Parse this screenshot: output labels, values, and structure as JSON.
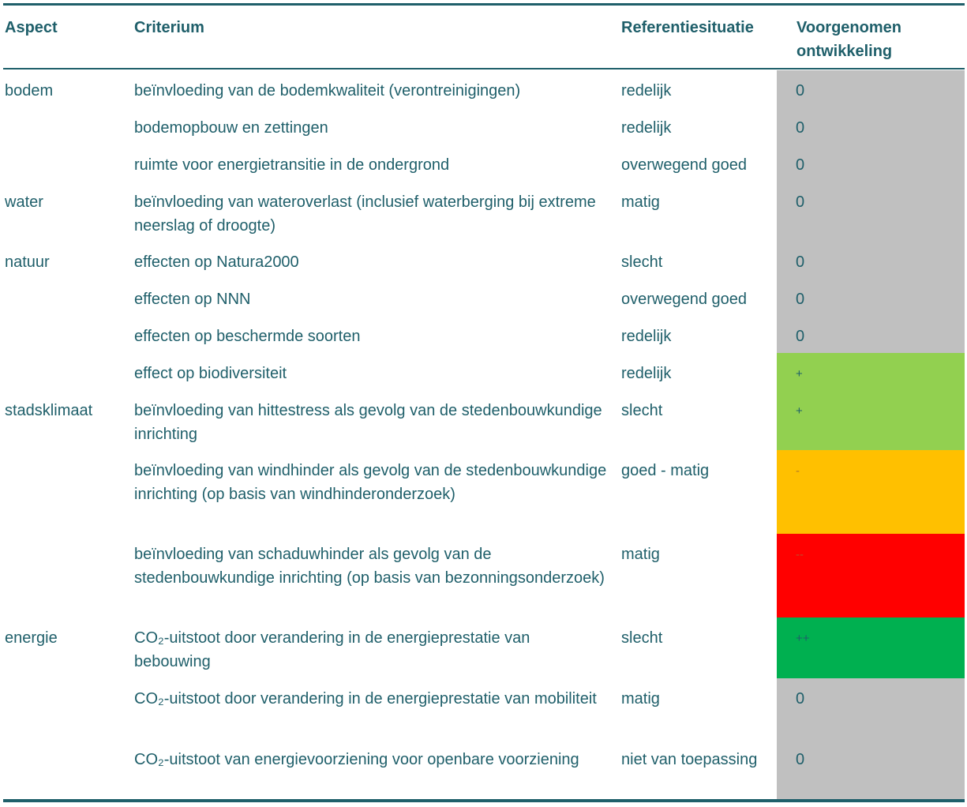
{
  "headers": {
    "aspect": "Aspect",
    "criterium": "Criterium",
    "referentie": "Referentiesituatie",
    "voorgenomen_line1": "Voorgenomen",
    "voorgenomen_line2": "ontwikkeling"
  },
  "colors": {
    "neutral": "#c0c0c0",
    "positive": "#92d050",
    "negative": "#ffc000",
    "very_negative": "#ff0000",
    "very_positive": "#00b050",
    "text": "#1f5f6a"
  },
  "rows": [
    {
      "aspect": "bodem",
      "criterium": "beïnvloeding van de bodemkwaliteit (verontreinigingen)",
      "referentie": "redelijk",
      "score": "0"
    },
    {
      "aspect": "",
      "criterium": "bodemopbouw en zettingen",
      "referentie": "redelijk",
      "score": "0"
    },
    {
      "aspect": "",
      "criterium": "ruimte voor energietransitie in de ondergrond",
      "referentie": "overwegend goed",
      "score": "0"
    },
    {
      "aspect": "water",
      "criterium": "beïnvloeding van wateroverlast (inclusief waterberging bij extreme neerslag of droogte)",
      "referentie": "matig",
      "score": "0"
    },
    {
      "aspect": "natuur",
      "criterium": "effecten op Natura2000",
      "referentie": "slecht",
      "score": "0"
    },
    {
      "aspect": "",
      "criterium": "effecten op NNN",
      "referentie": "overwegend goed",
      "score": "0"
    },
    {
      "aspect": "",
      "criterium": "effecten op beschermde soorten",
      "referentie": "redelijk",
      "score": "0"
    },
    {
      "aspect": "",
      "criterium": "effect op biodiversiteit",
      "referentie": "redelijk",
      "score": "+"
    },
    {
      "aspect": "stadsklimaat",
      "criterium": "beïnvloeding van hittestress als gevolg van de stedenbouwkundige inrichting",
      "referentie": "slecht",
      "score": "+"
    },
    {
      "aspect": "",
      "criterium": "beïnvloeding van windhinder als gevolg van de stedenbouwkundige inrichting (op basis van windhinderonderzoek)",
      "referentie": "goed - matig",
      "score": "-"
    },
    {
      "aspect": "",
      "criterium": "beïnvloeding van schaduwhinder als gevolg van de stedenbouwkundige inrichting (op basis van bezonningsonderzoek)",
      "referentie": "matig",
      "score": "--"
    },
    {
      "aspect": "energie",
      "criterium": "CO₂-uitstoot door verandering in de energieprestatie van bebouwing",
      "referentie": "slecht",
      "score": "++"
    },
    {
      "aspect": "",
      "criterium": "CO₂-uitstoot door verandering in de energieprestatie van mobiliteit",
      "referentie": "matig",
      "score": "0"
    },
    {
      "aspect": "",
      "criterium": "CO₂-uitstoot van energievoorziening voor openbare voorziening",
      "referentie": "niet van toepassing",
      "score": "0"
    }
  ]
}
